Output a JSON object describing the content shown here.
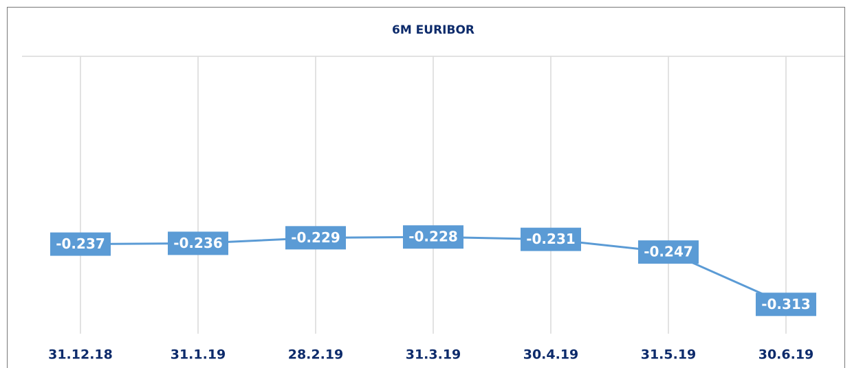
{
  "chart_data": {
    "type": "line",
    "title": "6M EURIBOR",
    "categories": [
      "31.12.18",
      "31.1.19",
      "28.2.19",
      "31.3.19",
      "30.4.19",
      "31.5.19",
      "30.6.19"
    ],
    "series": [
      {
        "name": "6M EURIBOR",
        "color": "#5b9bd5",
        "values": [
          -0.237,
          -0.236,
          -0.229,
          -0.228,
          -0.231,
          -0.247,
          -0.313
        ]
      }
    ],
    "ylim": [
      -0.35,
      0
    ],
    "grid": true
  }
}
